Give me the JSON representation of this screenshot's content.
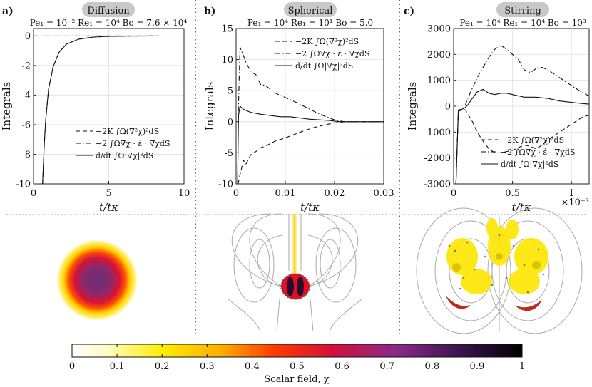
{
  "panels": [
    {
      "letter": "a)",
      "badge": "Diffusion",
      "params": "Pe₁ = 10⁻²  Re₁ = 10⁴  Bo = 7.6 × 10⁴",
      "xlabel": "t/tκ",
      "ylabel": "Integrals",
      "xticks": [
        "0",
        "5",
        "10"
      ],
      "yticks": [
        "-10",
        "-8",
        "-6",
        "-4",
        "-2",
        "0"
      ],
      "legend": [
        "−2K ∫Ω(∇²χ)²dS",
        "−2 ∫Ω∇χ · ε̇ · ∇χdS",
        "d/dt ∫Ω|∇χ|²dS"
      ]
    },
    {
      "letter": "b)",
      "badge": "Spherical",
      "params": "Pe₁ = 10⁴  Re₁ = 10¹  Bo = 5.0",
      "xlabel": "t/tκ",
      "ylabel": "Integrals",
      "xticks": [
        "0",
        "0.01",
        "0.02",
        "0.03"
      ],
      "yticks": [
        "-10",
        "-5",
        "0",
        "5",
        "10",
        "15"
      ],
      "legend": [
        "−2K ∫Ω(∇²χ)²dS",
        "−2 ∫Ω∇χ · ε̇ · ∇χdS",
        "d/dt ∫Ω|∇χ|²dS"
      ]
    },
    {
      "letter": "c)",
      "badge": "Stirring",
      "params": "Pe₁ = 10⁴  Re₁ = 10⁴  Bo = 10³",
      "xlabel": "t/tκ",
      "ylabel": "Integrals",
      "xticks": [
        "0",
        "0.5",
        "1"
      ],
      "xmult": "×10⁻³",
      "yticks": [
        "-3000",
        "-2000",
        "-1000",
        "0",
        "1000",
        "2000",
        "3000"
      ],
      "legend": [
        "−2K ∫Ω(∇²χ)²dS",
        "−2 ∫Ω∇χ · ε̇ · ∇χdS",
        "d/dt ∫Ω|∇χ|²dS"
      ]
    }
  ],
  "colorbar": {
    "label": "Scalar field, χ",
    "ticks": [
      "0",
      "0.1",
      "0.2",
      "0.3",
      "0.4",
      "0.5",
      "0.6",
      "0.7",
      "0.8",
      "0.9",
      "1"
    ]
  },
  "chart_data": [
    {
      "type": "line",
      "title": "Diffusion",
      "xlabel": "t/tκ",
      "ylabel": "Integrals",
      "xlim": [
        0,
        10
      ],
      "ylim": [
        -10,
        0.5
      ],
      "series": [
        {
          "name": "-2K ∫(∇²χ)²dS",
          "style": "dashed",
          "x": [
            0.6,
            0.7,
            0.8,
            1,
            1.3,
            1.7,
            2.2,
            3,
            4,
            5,
            6.5,
            8.3
          ],
          "y": [
            -10,
            -7.6,
            -5.8,
            -3.6,
            -2.1,
            -1.1,
            -0.55,
            -0.22,
            -0.08,
            -0.03,
            -0.01,
            0
          ]
        },
        {
          "name": "-2 ∫∇χ·ε̇·∇χdS",
          "style": "dashdot",
          "x": [
            0,
            8.3
          ],
          "y": [
            0,
            0
          ]
        },
        {
          "name": "d/dt ∫|∇χ|²dS",
          "style": "solid",
          "x": [
            0.6,
            0.7,
            0.8,
            1,
            1.3,
            1.7,
            2.2,
            3,
            4,
            5,
            6.5,
            8.3
          ],
          "y": [
            -10,
            -7.6,
            -5.8,
            -3.6,
            -2.1,
            -1.1,
            -0.55,
            -0.22,
            -0.08,
            -0.03,
            -0.01,
            0
          ]
        }
      ]
    },
    {
      "type": "line",
      "title": "Spherical",
      "xlabel": "t/tκ",
      "ylabel": "Integrals",
      "xlim": [
        0,
        0.03
      ],
      "ylim": [
        -10,
        15
      ],
      "series": [
        {
          "name": "-2K ∫(∇²χ)²dS",
          "style": "dashed",
          "x": [
            0.0004,
            0.0008,
            0.0015,
            0.002,
            0.003,
            0.004,
            0.005,
            0.006,
            0.008,
            0.01,
            0.012,
            0.014,
            0.016,
            0.018,
            0.02,
            0.022,
            0.025,
            0.03
          ],
          "y": [
            -10,
            -8.5,
            -6.2,
            -6.8,
            -5.3,
            -4.8,
            -4.2,
            -3.9,
            -3.1,
            -2.6,
            -2.0,
            -1.4,
            -0.9,
            -0.5,
            -0.2,
            0,
            0,
            0
          ]
        },
        {
          "name": "-2 ∫∇χ·ε̇·∇χdS",
          "style": "dashdot",
          "x": [
            0.0004,
            0.0008,
            0.0012,
            0.002,
            0.003,
            0.004,
            0.005,
            0.006,
            0.008,
            0.01,
            0.012,
            0.014,
            0.016,
            0.018,
            0.02,
            0.022,
            0.025,
            0.03
          ],
          "y": [
            0,
            12,
            11.2,
            9.6,
            8.0,
            7.6,
            6.0,
            5.8,
            4.6,
            3.9,
            3.2,
            2.4,
            1.6,
            0.9,
            0.3,
            0,
            0,
            0
          ]
        },
        {
          "name": "d/dt ∫|∇χ|²dS",
          "style": "solid",
          "x": [
            0.0003,
            0.0005,
            0.0008,
            0.0015,
            0.003,
            0.005,
            0.007,
            0.009,
            0.011,
            0.013,
            0.015,
            0.017,
            0.019,
            0.021,
            0.025,
            0.03
          ],
          "y": [
            -10,
            1.0,
            2.5,
            2.0,
            1.5,
            1.2,
            1.0,
            0.8,
            0.8,
            0.6,
            0.4,
            0.3,
            0.2,
            0,
            0,
            0
          ]
        }
      ]
    },
    {
      "type": "line",
      "title": "Stirring",
      "xlabel": "t/tκ (×10⁻³)",
      "ylabel": "Integrals",
      "xlim": [
        0,
        1.15
      ],
      "ylim": [
        -3000,
        3000
      ],
      "series": [
        {
          "name": "-2K ∫(∇²χ)²dS",
          "style": "dashed",
          "x": [
            0.02,
            0.04,
            0.08,
            0.1,
            0.12,
            0.16,
            0.2,
            0.25,
            0.3,
            0.35,
            0.4,
            0.45,
            0.5,
            0.55,
            0.6,
            0.65,
            0.7,
            0.75,
            0.8,
            0.9,
            1.0,
            1.1,
            1.15
          ],
          "y": [
            -3000,
            -200,
            -120,
            -150,
            -300,
            -600,
            -1000,
            -1350,
            -1650,
            -1800,
            -1800,
            -1750,
            -1700,
            -1600,
            -1500,
            -1550,
            -1650,
            -1500,
            -1300,
            -1000,
            -700,
            -400,
            -350
          ]
        },
        {
          "name": "-2 ∫∇χ·ε̇·∇χdS",
          "style": "dashdot",
          "x": [
            0.02,
            0.04,
            0.08,
            0.1,
            0.12,
            0.16,
            0.2,
            0.25,
            0.3,
            0.35,
            0.4,
            0.45,
            0.5,
            0.55,
            0.6,
            0.65,
            0.7,
            0.75,
            0.8,
            0.9,
            1.0,
            1.1,
            1.15
          ],
          "y": [
            -3000,
            -150,
            -100,
            50,
            300,
            700,
            1100,
            1500,
            1900,
            2200,
            2350,
            2200,
            2000,
            1800,
            1400,
            1300,
            1450,
            1500,
            1400,
            1100,
            800,
            500,
            400
          ]
        },
        {
          "name": "d/dt ∫|∇χ|²dS",
          "style": "solid",
          "x": [
            0.02,
            0.04,
            0.08,
            0.1,
            0.12,
            0.16,
            0.2,
            0.25,
            0.3,
            0.35,
            0.4,
            0.45,
            0.5,
            0.55,
            0.6,
            0.7,
            0.8,
            0.9,
            1.0,
            1.1,
            1.15
          ],
          "y": [
            -3000,
            -180,
            -100,
            -50,
            50,
            300,
            550,
            650,
            500,
            450,
            500,
            500,
            450,
            400,
            350,
            350,
            300,
            200,
            150,
            100,
            80
          ]
        }
      ]
    }
  ]
}
